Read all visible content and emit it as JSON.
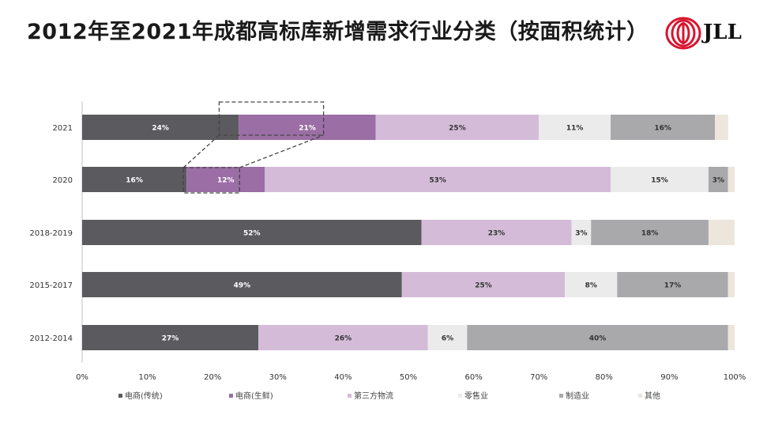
{
  "title": "2012年至2021年成都高标库新增需求行业分类（按面积统计）",
  "logo": {
    "text": "JLL"
  },
  "colors": {
    "ecommerce_traditional": "#5a5a5f",
    "ecommerce_fresh": "#9b6ea5",
    "third_party_logistics": "#d4bcd9",
    "retail": "#ebebeb",
    "manufacturing": "#a9a9ab",
    "other": "#ece6dc"
  },
  "chart_data": {
    "type": "bar",
    "orientation": "horizontal",
    "stacked": true,
    "categories": [
      "2021",
      "2020",
      "2018-2019",
      "2015-2017",
      "2012-2014"
    ],
    "series": [
      {
        "name": "电商(传统)",
        "color_key": "ecommerce_traditional",
        "values": [
          24,
          16,
          52,
          49,
          27
        ],
        "labels": [
          "24%",
          "16%",
          "52%",
          "49%",
          "27%"
        ],
        "label_color": "#ffffff"
      },
      {
        "name": "电商(生鲜)",
        "color_key": "ecommerce_fresh",
        "values": [
          21,
          12,
          0,
          0,
          0
        ],
        "labels": [
          "21%",
          "12%",
          "",
          "",
          ""
        ],
        "label_color": "#ffffff"
      },
      {
        "name": "第三方物流",
        "color_key": "third_party_logistics",
        "values": [
          25,
          53,
          23,
          25,
          26
        ],
        "labels": [
          "25%",
          "53%",
          "23%",
          "25%",
          "26%"
        ],
        "label_color": "#333333"
      },
      {
        "name": "零售业",
        "color_key": "retail",
        "values": [
          11,
          15,
          3,
          8,
          6
        ],
        "labels": [
          "11%",
          "15%",
          "3%",
          "8%",
          "6%"
        ],
        "label_color": "#333333"
      },
      {
        "name": "制造业",
        "color_key": "manufacturing",
        "values": [
          16,
          3,
          18,
          17,
          40
        ],
        "labels": [
          "16%",
          "3%",
          "18%",
          "17%",
          "40%"
        ],
        "label_color": "#333333"
      },
      {
        "name": "其他",
        "color_key": "other",
        "values": [
          2,
          1,
          4,
          1,
          1
        ],
        "labels": [
          "",
          "",
          "",
          "",
          ""
        ],
        "label_color": "#333333"
      }
    ],
    "x_ticks": [
      "0%",
      "10%",
      "20%",
      "30%",
      "40%",
      "50%",
      "60%",
      "70%",
      "80%",
      "90%",
      "100%"
    ],
    "xlim": [
      0,
      100
    ],
    "legend_position": "bottom",
    "annotation": "dashed callout linking 2020 电商(生鲜) to 2021 电商(生鲜)"
  }
}
